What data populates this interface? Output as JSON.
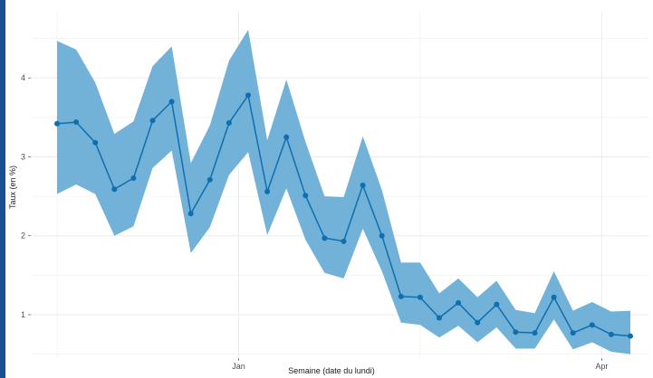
{
  "chart_data": {
    "type": "line",
    "title": "",
    "xlabel": "Semaine (date du lundi)",
    "ylabel": "Taux (en %)",
    "ylim": [
      0.45,
      4.85
    ],
    "y_ticks": [
      1,
      2,
      3,
      4
    ],
    "x_ticks": [
      {
        "label": "Jan",
        "index": 9.5
      },
      {
        "label": "Apr",
        "index": 28.5
      }
    ],
    "grid": true,
    "legend": "none",
    "colors": {
      "line": "#0e6fb0",
      "band": "#6aaed6",
      "grid": "#ebebeb",
      "accent": "#1a4f94"
    },
    "series": [
      {
        "values": [
          3.42,
          3.44,
          3.18,
          2.59,
          2.73,
          3.46,
          3.7,
          2.28,
          2.71,
          3.43,
          3.78,
          2.56,
          3.25,
          2.51,
          1.97,
          1.93,
          2.64,
          2.0,
          1.23,
          1.22,
          0.96,
          1.15,
          0.9,
          1.13,
          0.78,
          0.77,
          1.22,
          0.77,
          0.87,
          0.75,
          0.73
        ],
        "lower": [
          2.53,
          2.65,
          2.53,
          2.0,
          2.12,
          2.86,
          3.08,
          1.78,
          2.11,
          2.77,
          3.06,
          2.01,
          2.6,
          1.95,
          1.53,
          1.46,
          2.09,
          1.55,
          0.9,
          0.87,
          0.71,
          0.86,
          0.65,
          0.84,
          0.57,
          0.57,
          0.94,
          0.56,
          0.65,
          0.53,
          0.5
        ],
        "upper": [
          4.47,
          4.36,
          3.94,
          3.29,
          3.45,
          4.15,
          4.4,
          2.92,
          3.4,
          4.22,
          4.61,
          3.21,
          3.98,
          3.19,
          2.5,
          2.49,
          3.26,
          2.58,
          1.66,
          1.66,
          1.27,
          1.46,
          1.22,
          1.43,
          1.06,
          1.02,
          1.55,
          1.05,
          1.16,
          1.04,
          1.05
        ]
      }
    ]
  }
}
